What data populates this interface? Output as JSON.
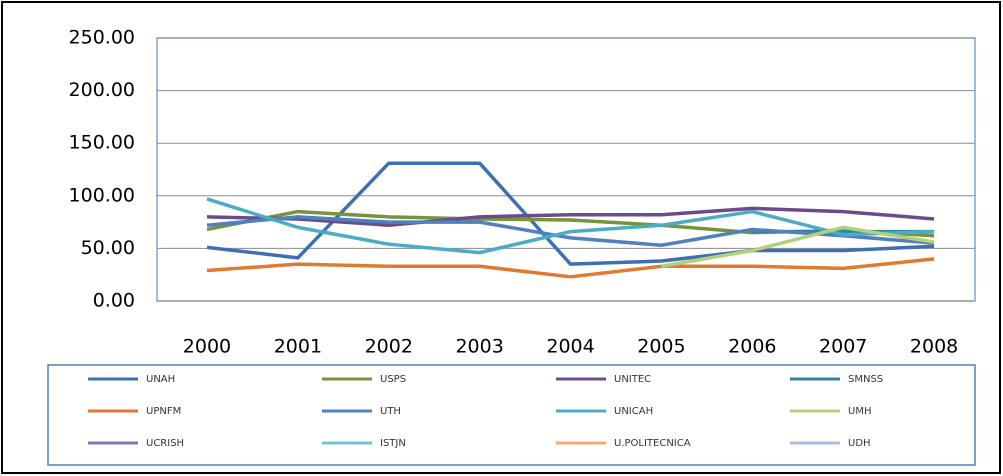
{
  "chart_data": {
    "type": "line",
    "categories": [
      "2000",
      "2001",
      "2002",
      "2003",
      "2004",
      "2005",
      "2006",
      "2007",
      "2008"
    ],
    "ylim": [
      0,
      250
    ],
    "yticks": [
      {
        "value": 0,
        "label": "0.00"
      },
      {
        "value": 50,
        "label": "50.00"
      },
      {
        "value": 100,
        "label": "100.00"
      },
      {
        "value": 150,
        "label": "150.00"
      },
      {
        "value": 200,
        "label": "200.00"
      },
      {
        "value": 250,
        "label": "250.00"
      }
    ],
    "grid": true,
    "legend": "bottom",
    "series": [
      {
        "name": "UNAH",
        "color": "#3f6fb3",
        "values": [
          51,
          41,
          131,
          131,
          35,
          38,
          48,
          48,
          52
        ]
      },
      {
        "name": "USPS",
        "color": "#77933c",
        "values": [
          68,
          85,
          80,
          78,
          77,
          72,
          65,
          67,
          62
        ]
      },
      {
        "name": "UNITEC",
        "color": "#6a4c8c",
        "values": [
          80,
          78,
          72,
          80,
          82,
          82,
          88,
          85,
          78
        ]
      },
      {
        "name": "SMNSS",
        "color": "#31859c",
        "values": [
          null,
          null,
          null,
          null,
          null,
          null,
          66,
          66,
          66
        ]
      },
      {
        "name": "UPNFM",
        "color": "#e07a2e",
        "values": [
          29,
          35,
          33,
          33,
          23,
          33,
          33,
          31,
          40
        ]
      },
      {
        "name": "UTH",
        "color": "#4f81bd",
        "values": [
          72,
          80,
          75,
          75,
          60,
          53,
          68,
          62,
          55
        ]
      },
      {
        "name": "UNICAH",
        "color": "#4bacc6",
        "values": [
          97,
          70,
          54,
          46,
          66,
          72,
          85,
          63,
          66
        ]
      },
      {
        "name": "UMH",
        "color": "#b3cf7a",
        "values": [
          null,
          null,
          null,
          null,
          null,
          33,
          48,
          70,
          56
        ]
      },
      {
        "name": "UCRISH",
        "color": "#8c72b0",
        "values": [
          null,
          null,
          null,
          null,
          null,
          null,
          null,
          null,
          null
        ]
      },
      {
        "name": "ISTJN",
        "color": "#6fc3db",
        "values": [
          null,
          null,
          null,
          null,
          null,
          null,
          null,
          null,
          null
        ]
      },
      {
        "name": "U.POLITECNICA",
        "color": "#f5a86b",
        "values": [
          null,
          null,
          null,
          null,
          null,
          null,
          null,
          null,
          null
        ]
      },
      {
        "name": "UDH",
        "color": "#a9bde0",
        "values": [
          null,
          null,
          null,
          null,
          null,
          null,
          null,
          null,
          null
        ]
      }
    ]
  }
}
